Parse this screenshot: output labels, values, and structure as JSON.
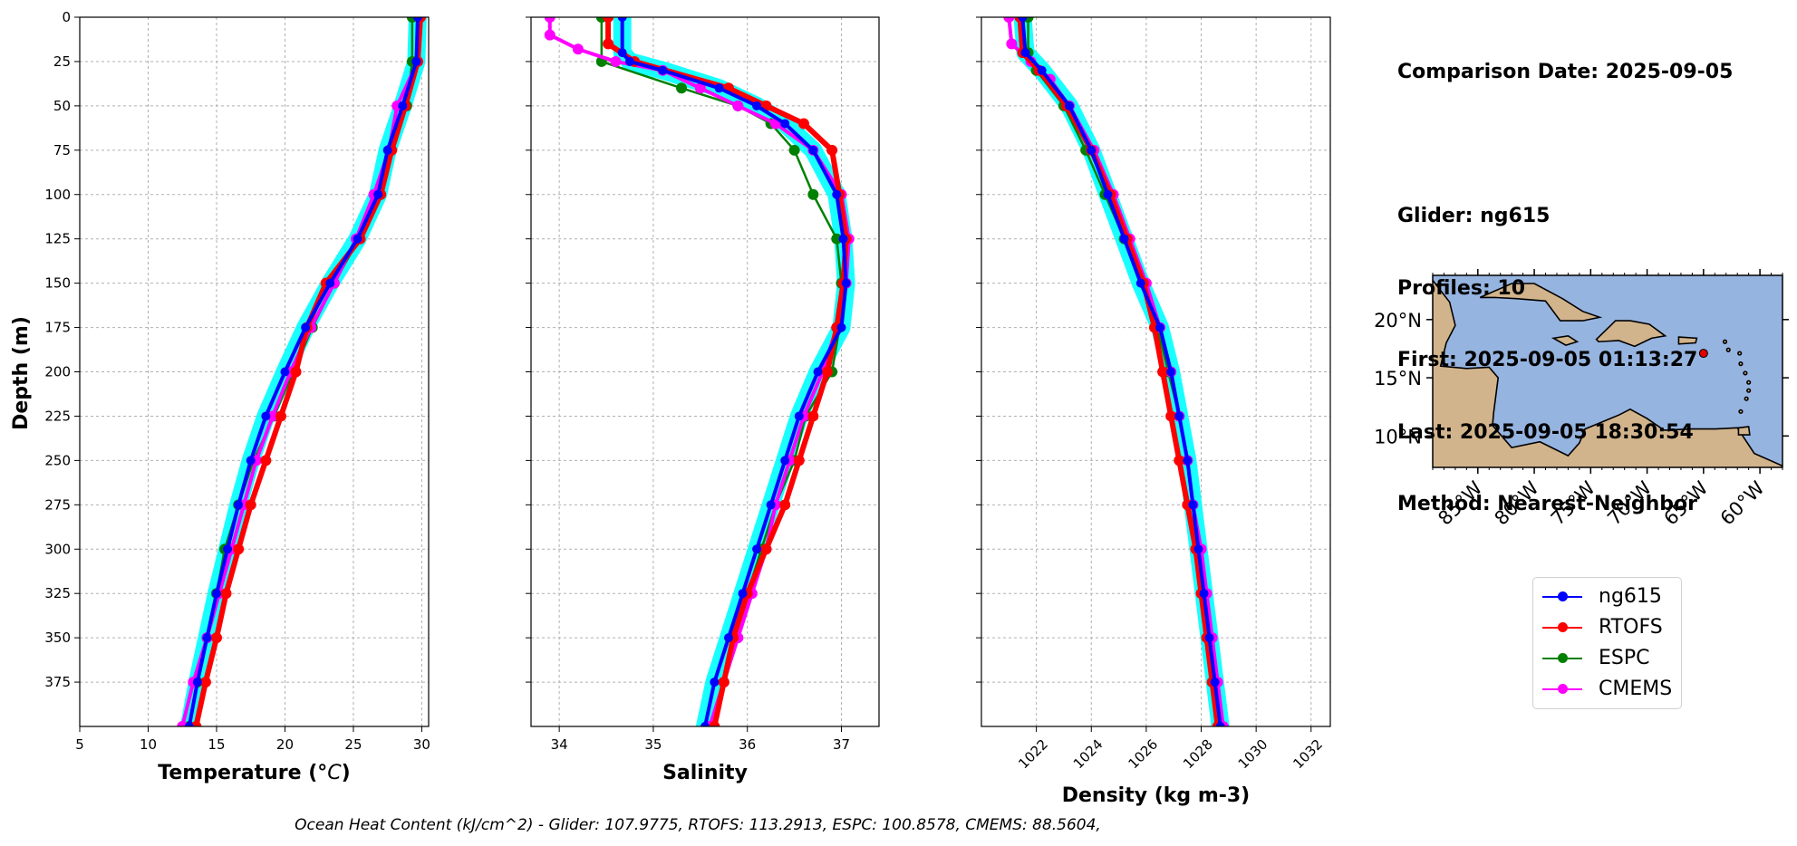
{
  "info": {
    "comparison_date": "Comparison Date: 2025-09-05",
    "glider": "Glider: ng615",
    "profiles": "Profiles: 10",
    "first": "First: 2025-09-05 01:13:27",
    "last": "Last: 2025-09-05 18:30:54",
    "method": "Method: Nearest-Neighbor"
  },
  "footer": "Ocean Heat Content (kJ/cm^2) - Glider: 107.9775,  RTOFS: 113.2913,  ESPC: 100.8578,  CMEMS: 88.5604,",
  "colors": {
    "ng615": "#0000ff",
    "ng615_spread": "#00ffff",
    "RTOFS": "#ff0000",
    "ESPC": "#008000",
    "CMEMS": "#ff00ff",
    "map_ocean": "#96b4e0",
    "map_land": "#d2b48c"
  },
  "legend": [
    {
      "label": "ng615",
      "color": "#0000ff"
    },
    {
      "label": "RTOFS",
      "color": "#ff0000"
    },
    {
      "label": "ESPC",
      "color": "#008000"
    },
    {
      "label": "CMEMS",
      "color": "#ff00ff"
    }
  ],
  "map": {
    "lon_ticks": [
      "85°W",
      "80°W",
      "75°W",
      "70°W",
      "65°W",
      "60°W"
    ],
    "lat_ticks": [
      "10°N",
      "15°N",
      "20°N"
    ],
    "lon_range": [
      -89,
      -58
    ],
    "lat_range": [
      7.3,
      23.8
    ],
    "glider_position": {
      "lon": -65.0,
      "lat": 17.1
    }
  },
  "chart_data": [
    {
      "type": "line",
      "xlabel": "Temperature (°C)",
      "ylabel": "Depth (m)",
      "xlim": [
        5,
        30.5
      ],
      "ylim": [
        400,
        0
      ],
      "xticks": [
        5,
        10,
        15,
        20,
        25,
        30
      ],
      "yticks": [
        0,
        25,
        50,
        75,
        100,
        125,
        150,
        175,
        200,
        225,
        250,
        275,
        300,
        325,
        350,
        375
      ],
      "grid": true,
      "series": [
        {
          "name": "ng615",
          "depth": [
            0,
            25,
            50,
            75,
            100,
            125,
            150,
            175,
            200,
            225,
            250,
            275,
            300,
            325,
            350,
            375,
            400
          ],
          "values": [
            29.7,
            29.6,
            28.6,
            27.5,
            26.8,
            25.3,
            23.3,
            21.5,
            20.0,
            18.6,
            17.5,
            16.6,
            15.8,
            15.0,
            14.3,
            13.6,
            13.0
          ]
        },
        {
          "name": "RTOFS",
          "depth": [
            0,
            25,
            50,
            75,
            100,
            125,
            150,
            175,
            200,
            225,
            250,
            275,
            300,
            325,
            350,
            375,
            400
          ],
          "values": [
            29.9,
            29.7,
            28.8,
            27.8,
            27.0,
            25.5,
            23.0,
            21.6,
            20.8,
            19.7,
            18.6,
            17.5,
            16.6,
            15.7,
            15.0,
            14.2,
            13.5
          ]
        },
        {
          "name": "ESPC",
          "depth": [
            0,
            25,
            50,
            75,
            100,
            125,
            150,
            175,
            200,
            225,
            250,
            275,
            300,
            325,
            350,
            375,
            400
          ],
          "values": [
            29.3,
            29.3,
            28.9,
            27.6,
            26.8,
            25.4,
            23.6,
            22.0,
            20.6,
            19.2,
            17.7,
            16.6,
            15.6,
            15.0,
            14.3,
            13.6,
            13.0
          ]
        },
        {
          "name": "CMEMS",
          "depth": [
            0,
            25,
            50,
            75,
            100,
            125,
            150,
            175,
            200,
            225,
            250,
            275,
            300,
            325,
            350,
            375,
            400
          ],
          "values": [
            29.8,
            29.7,
            28.2,
            27.6,
            26.5,
            25.2,
            23.6,
            21.9,
            20.4,
            19.1,
            17.9,
            17.0,
            16.1,
            15.2,
            14.3,
            13.3,
            12.5
          ]
        }
      ]
    },
    {
      "type": "line",
      "xlabel": "Salinity",
      "xlim": [
        33.7,
        37.4
      ],
      "ylim": [
        400,
        0
      ],
      "xticks": [
        34,
        35,
        36,
        37
      ],
      "yticks": [
        0,
        25,
        50,
        75,
        100,
        125,
        150,
        175,
        200,
        225,
        250,
        275,
        300,
        325,
        350,
        375
      ],
      "grid": true,
      "series": [
        {
          "name": "ng615",
          "depth": [
            0,
            20,
            25,
            30,
            40,
            50,
            60,
            75,
            100,
            125,
            150,
            175,
            200,
            225,
            250,
            275,
            300,
            325,
            350,
            375,
            400
          ],
          "values": [
            34.67,
            34.67,
            34.75,
            35.1,
            35.7,
            36.1,
            36.4,
            36.7,
            36.95,
            37.02,
            37.05,
            37.0,
            36.75,
            36.55,
            36.4,
            36.25,
            36.1,
            35.95,
            35.8,
            35.65,
            35.55
          ]
        },
        {
          "name": "RTOFS",
          "depth": [
            0,
            15,
            25,
            40,
            50,
            60,
            75,
            100,
            125,
            150,
            175,
            200,
            225,
            250,
            275,
            300,
            325,
            350,
            375,
            400
          ],
          "values": [
            34.52,
            34.52,
            34.8,
            35.8,
            36.2,
            36.6,
            36.9,
            36.98,
            37.05,
            37.02,
            36.95,
            36.85,
            36.7,
            36.55,
            36.4,
            36.2,
            36.0,
            35.85,
            35.75,
            35.65
          ]
        },
        {
          "name": "ESPC",
          "depth": [
            0,
            25,
            40,
            50,
            60,
            75,
            100,
            125,
            150,
            175,
            200,
            225,
            250,
            275,
            300,
            325,
            350,
            375,
            400
          ],
          "values": [
            34.45,
            34.45,
            35.3,
            35.9,
            36.25,
            36.5,
            36.7,
            36.95,
            37.0,
            36.98,
            36.9,
            36.62,
            36.5,
            36.3,
            36.15,
            36.0,
            35.85,
            35.75,
            35.6
          ]
        },
        {
          "name": "CMEMS",
          "depth": [
            0,
            10,
            18,
            25,
            30,
            40,
            50,
            60,
            75,
            100,
            125,
            150,
            175,
            200,
            225,
            250,
            275,
            300,
            325,
            350,
            375,
            400
          ],
          "values": [
            33.9,
            33.9,
            34.2,
            34.6,
            35.1,
            35.5,
            35.9,
            36.3,
            36.7,
            37.0,
            37.08,
            37.05,
            36.95,
            36.8,
            36.6,
            36.45,
            36.3,
            36.2,
            36.05,
            35.9,
            35.75,
            35.6
          ]
        }
      ]
    },
    {
      "type": "line",
      "xlabel": "Density (kg m-3)",
      "xlim": [
        1020.0,
        1032.7
      ],
      "ylim": [
        400,
        0
      ],
      "xticks": [
        1022,
        1024,
        1026,
        1028,
        1030,
        1032
      ],
      "yticks": [
        0,
        25,
        50,
        75,
        100,
        125,
        150,
        175,
        200,
        225,
        250,
        275,
        300,
        325,
        350,
        375
      ],
      "grid": true,
      "series": [
        {
          "name": "ng615",
          "depth": [
            0,
            20,
            30,
            50,
            75,
            100,
            125,
            150,
            175,
            200,
            225,
            250,
            275,
            300,
            325,
            350,
            375,
            400
          ],
          "values": [
            1021.5,
            1021.6,
            1022.2,
            1023.2,
            1024.0,
            1024.6,
            1025.2,
            1025.8,
            1026.5,
            1026.9,
            1027.2,
            1027.5,
            1027.7,
            1027.9,
            1028.1,
            1028.3,
            1028.5,
            1028.7
          ]
        },
        {
          "name": "RTOFS",
          "depth": [
            0,
            20,
            30,
            50,
            75,
            100,
            125,
            150,
            175,
            200,
            225,
            250,
            275,
            300,
            325,
            350,
            375,
            400
          ],
          "values": [
            1021.4,
            1021.5,
            1022.1,
            1023.1,
            1024.0,
            1024.7,
            1025.3,
            1025.9,
            1026.3,
            1026.6,
            1026.9,
            1027.2,
            1027.5,
            1027.8,
            1028.0,
            1028.2,
            1028.4,
            1028.6
          ]
        },
        {
          "name": "ESPC",
          "depth": [
            0,
            20,
            30,
            50,
            75,
            100,
            125,
            150,
            175,
            200,
            225,
            250,
            275,
            300,
            325,
            350,
            375,
            400
          ],
          "values": [
            1021.7,
            1021.7,
            1022.0,
            1023.0,
            1023.8,
            1024.5,
            1025.2,
            1025.9,
            1026.4,
            1026.8,
            1027.2,
            1027.5,
            1027.7,
            1027.9,
            1028.1,
            1028.3,
            1028.5,
            1028.7
          ]
        },
        {
          "name": "CMEMS",
          "depth": [
            0,
            15,
            25,
            35,
            50,
            75,
            100,
            125,
            150,
            175,
            200,
            225,
            250,
            275,
            300,
            325,
            350,
            375,
            400
          ],
          "values": [
            1021.0,
            1021.1,
            1021.8,
            1022.5,
            1023.2,
            1024.1,
            1024.8,
            1025.4,
            1026.0,
            1026.5,
            1026.9,
            1027.2,
            1027.5,
            1027.7,
            1028.0,
            1028.2,
            1028.4,
            1028.6,
            1028.8
          ]
        }
      ]
    }
  ]
}
